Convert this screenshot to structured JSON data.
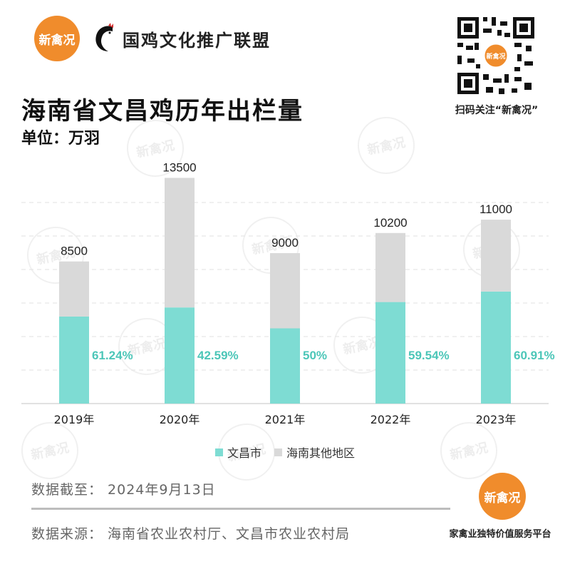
{
  "header": {
    "logo_text": "新禽况",
    "alliance_name": "国鸡文化推广联盟",
    "qr_center_text": "新禽况",
    "qr_caption": "扫码关注“新禽况”"
  },
  "title": "海南省文昌鸡历年出栏量",
  "unit": "单位：万羽",
  "watermark_text": "新禽况",
  "colors": {
    "wenchang": "#7edcd3",
    "other": "#d9d9d9",
    "pct_text": "#4cc6b8",
    "brand": "#f08c2c"
  },
  "chart_data": {
    "type": "bar",
    "stacked": true,
    "categories": [
      "2019年",
      "2020年",
      "2021年",
      "2022年",
      "2023年"
    ],
    "totals": [
      8500,
      13500,
      9000,
      10200,
      11000
    ],
    "wenchang_share_labels": [
      "61.24%",
      "42.59%",
      "50%",
      "59.54%",
      "60.91%"
    ],
    "wenchang_share": [
      61.24,
      42.59,
      50,
      59.54,
      60.91
    ],
    "series": [
      {
        "name": "文昌市",
        "values": [
          5205,
          5750,
          4500,
          6073,
          6700
        ]
      },
      {
        "name": "海南其他地区",
        "values": [
          3295,
          7750,
          4500,
          4127,
          4300
        ]
      }
    ],
    "ylim": [
      0,
      14500
    ],
    "grid": true,
    "legend_position": "bottom"
  },
  "legend": {
    "wenchang": "文昌市",
    "other": "海南其他地区"
  },
  "footer": {
    "date_note": "数据截至：  2024年9月13日",
    "source_note": "数据来源：  海南省农业农村厅、文昌市农业农村局",
    "brand_text": "新禽况",
    "platform": "家禽业独特价值服务平台"
  }
}
